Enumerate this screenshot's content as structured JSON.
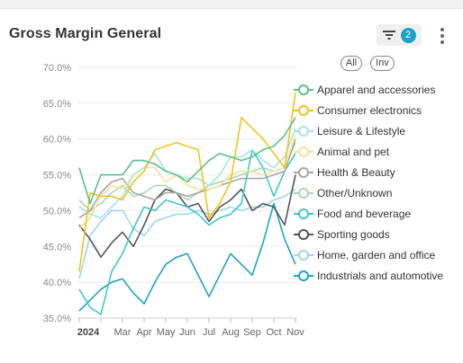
{
  "header": {
    "title": "Gross Margin General",
    "filter_count": "2",
    "filter_icon": "filter-icon",
    "more_icon": "more-vertical-icon"
  },
  "controls": {
    "all_label": "All",
    "inv_label": "Inv"
  },
  "chart_data": {
    "type": "line",
    "title": "Gross Margin General",
    "xlabel": "",
    "ylabel": "",
    "ylim": [
      35,
      70
    ],
    "y_ticks": [
      "35.0%",
      "40.0%",
      "45.0%",
      "50.0%",
      "55.0%",
      "60.0%",
      "65.0%",
      "70.0%"
    ],
    "x_ticks": [
      "2024",
      "Mar",
      "Apr",
      "May",
      "Jun",
      "Jul",
      "Aug",
      "Sep",
      "Oct",
      "Nov"
    ],
    "x_tick_months": [
      0,
      2,
      3,
      4,
      5,
      6,
      7,
      8,
      9,
      10
    ],
    "x_months": [
      0,
      0.5,
      1,
      1.5,
      2,
      2.5,
      3,
      3.5,
      4,
      4.5,
      5,
      5.5,
      6,
      6.5,
      7,
      7.5,
      8,
      8.5,
      9,
      9.5,
      10
    ],
    "grid": true,
    "legend_position": "right",
    "series": [
      {
        "name": "Apparel and accessories",
        "color": "#5bbf8c",
        "values": [
          56,
          51,
          55,
          55,
          55,
          57,
          57,
          56.5,
          55.5,
          55,
          54,
          55.5,
          57,
          58,
          57.5,
          57,
          57.5,
          58.5,
          59,
          60.5,
          63
        ]
      },
      {
        "name": "Consumer electronics",
        "color": "#f0c419",
        "values": [
          41.5,
          52.5,
          52,
          52,
          51.5,
          54,
          55.5,
          58.5,
          59,
          59.5,
          59,
          58.5,
          49,
          51,
          54,
          63,
          61.5,
          60,
          58,
          56,
          66.5
        ]
      },
      {
        "name": "Leisure & Lifestyle",
        "color": "#a8e3e3",
        "values": [
          50.5,
          49.5,
          49,
          50.5,
          52,
          55,
          56,
          58,
          55.5,
          55,
          54.5,
          54.5,
          53.5,
          55,
          57.5,
          57.5,
          58.5,
          57,
          56,
          57.5,
          61.5
        ]
      },
      {
        "name": "Animal and pet",
        "color": "#f7e19b",
        "values": [
          47.5,
          49,
          52,
          53.5,
          53,
          55,
          56,
          56,
          54,
          55,
          53.5,
          53,
          53,
          53.5,
          55,
          55.5,
          55.5,
          55,
          55.5,
          56,
          60.5
        ]
      },
      {
        "name": "Health & Beauty",
        "color": "#a6a6a6",
        "values": [
          49,
          50,
          52.5,
          54,
          54.5,
          52.5,
          52,
          51.5,
          52.5,
          52.5,
          52,
          52.5,
          53,
          53.5,
          54,
          54.5,
          54.5,
          54.5,
          55,
          55.5,
          60
        ]
      },
      {
        "name": "Other/Unknown",
        "color": "#a8d8b4",
        "values": [
          51.5,
          50,
          51,
          52.5,
          53.5,
          52,
          52.5,
          53.5,
          53.5,
          52.5,
          51.5,
          52.5,
          53.5,
          54,
          54.5,
          55,
          55.5,
          56,
          55.5,
          56,
          59.5
        ]
      },
      {
        "name": "Food and beverage",
        "color": "#3ec9c9",
        "values": [
          39,
          36.5,
          35.5,
          41.5,
          44,
          47.5,
          50.5,
          50,
          51.5,
          51,
          50.5,
          49.5,
          48,
          49,
          49.5,
          51,
          58.5,
          56,
          52,
          55.5,
          58
        ]
      },
      {
        "name": "Sporting goods",
        "color": "#555555",
        "values": [
          48,
          46,
          43.5,
          45.5,
          47,
          45,
          48,
          51.5,
          53,
          52.5,
          50.5,
          51,
          48.5,
          50.5,
          51.5,
          53,
          50,
          51,
          50.5,
          48,
          55
        ]
      },
      {
        "name": "Home, garden and office",
        "color": "#9ed6e6",
        "values": [
          40.5,
          46.5,
          48.5,
          50,
          50,
          47.5,
          46.5,
          48.5,
          49,
          49.5,
          49.5,
          50,
          49.5,
          50,
          50.5,
          50,
          50.5,
          50.5,
          51.5,
          52,
          53
        ]
      },
      {
        "name": "Industrials and automotive",
        "color": "#1ca3c6",
        "values": [
          36,
          37.5,
          39,
          40,
          40.5,
          38.5,
          37,
          40,
          42.5,
          43.5,
          44,
          41,
          38,
          41,
          44,
          42.5,
          41,
          45.5,
          51,
          46,
          42.5
        ]
      }
    ]
  }
}
